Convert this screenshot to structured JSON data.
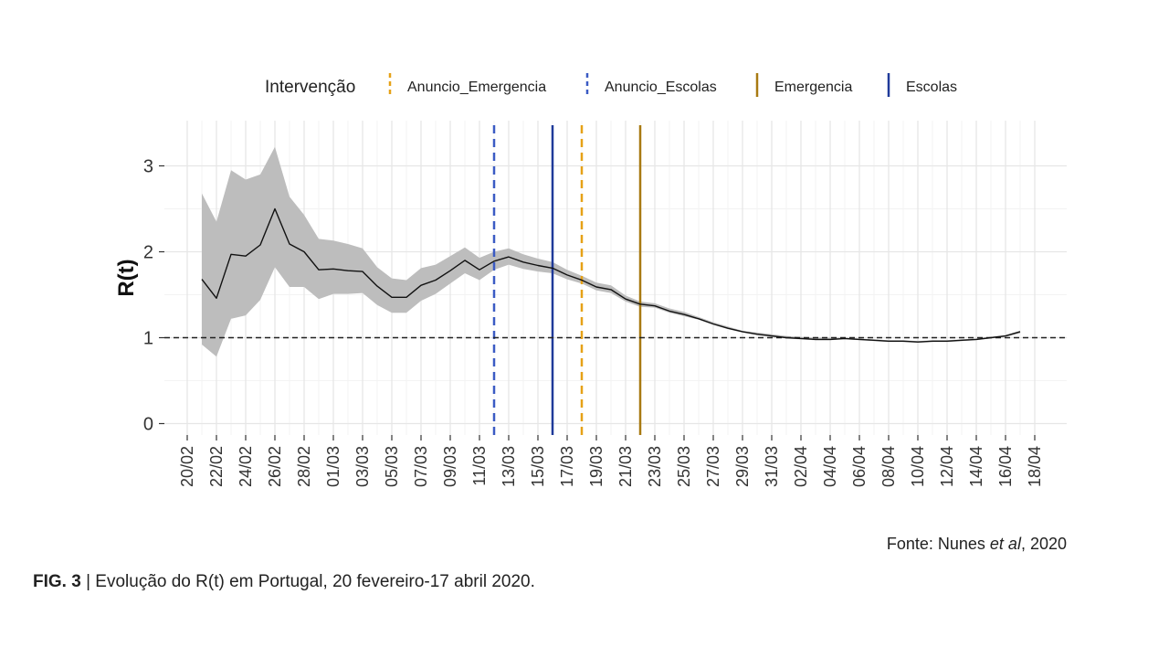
{
  "chart_data": {
    "type": "line",
    "title": "",
    "xlabel": "",
    "ylabel": "R(t)",
    "ylim": [
      0,
      3.4
    ],
    "yticks": [
      "0",
      "1",
      "2",
      "3"
    ],
    "x_tick_labels": [
      "20/02",
      "22/02",
      "24/02",
      "26/02",
      "28/02",
      "01/03",
      "03/03",
      "05/03",
      "07/03",
      "09/03",
      "11/03",
      "13/03",
      "15/03",
      "17/03",
      "19/03",
      "21/03",
      "23/03",
      "25/03",
      "27/03",
      "29/03",
      "31/03",
      "02/04",
      "04/04",
      "06/04",
      "08/04",
      "10/04",
      "12/04",
      "14/04",
      "16/04",
      "18/04"
    ],
    "grid": true,
    "reference_line": {
      "y": 1,
      "style": "dashed",
      "color": "#222222"
    },
    "legend": {
      "title": "Intervenção",
      "placement": "top",
      "items": [
        {
          "label": "Anuncio_Emergencia",
          "color": "#E6A117",
          "style": "dashed",
          "date": "2020-03-18"
        },
        {
          "label": "Anuncio_Escolas",
          "color": "#3B5BC4",
          "style": "dashed",
          "date": "2020-03-12"
        },
        {
          "label": "Emergencia",
          "color": "#A87A12",
          "style": "solid",
          "date": "2020-03-22"
        },
        {
          "label": "Escolas",
          "color": "#1F3A99",
          "style": "solid",
          "date": "2020-03-16"
        }
      ]
    },
    "series": [
      {
        "style": "line_with_ribbon",
        "color": "#111111",
        "band_color": "#BDBDBD",
        "x": [
          "2020-02-21",
          "2020-02-22",
          "2020-02-23",
          "2020-02-24",
          "2020-02-25",
          "2020-02-26",
          "2020-02-27",
          "2020-02-28",
          "2020-02-29",
          "2020-03-01",
          "2020-03-02",
          "2020-03-03",
          "2020-03-04",
          "2020-03-05",
          "2020-03-06",
          "2020-03-07",
          "2020-03-08",
          "2020-03-09",
          "2020-03-10",
          "2020-03-11",
          "2020-03-12",
          "2020-03-13",
          "2020-03-14",
          "2020-03-15",
          "2020-03-16",
          "2020-03-17",
          "2020-03-18",
          "2020-03-19",
          "2020-03-20",
          "2020-03-21",
          "2020-03-22",
          "2020-03-23",
          "2020-03-24",
          "2020-03-25",
          "2020-03-26",
          "2020-03-27",
          "2020-03-28",
          "2020-03-29",
          "2020-03-30",
          "2020-03-31",
          "2020-04-01",
          "2020-04-02",
          "2020-04-03",
          "2020-04-04",
          "2020-04-05",
          "2020-04-06",
          "2020-04-07",
          "2020-04-08",
          "2020-04-09",
          "2020-04-10",
          "2020-04-11",
          "2020-04-12",
          "2020-04-13",
          "2020-04-14",
          "2020-04-15",
          "2020-04-16",
          "2020-04-17"
        ],
        "values": [
          1.68,
          1.46,
          1.97,
          1.95,
          2.08,
          2.5,
          2.09,
          2.0,
          1.79,
          1.8,
          1.78,
          1.77,
          1.6,
          1.47,
          1.47,
          1.61,
          1.67,
          1.78,
          1.9,
          1.79,
          1.89,
          1.94,
          1.88,
          1.84,
          1.81,
          1.73,
          1.67,
          1.59,
          1.56,
          1.45,
          1.39,
          1.37,
          1.31,
          1.27,
          1.22,
          1.16,
          1.11,
          1.07,
          1.04,
          1.02,
          1.0,
          0.99,
          0.98,
          0.98,
          0.99,
          0.98,
          0.97,
          0.96,
          0.96,
          0.95,
          0.96,
          0.96,
          0.97,
          0.98,
          1.0,
          1.02,
          1.07
        ],
        "lower": [
          0.92,
          0.78,
          1.22,
          1.26,
          1.44,
          1.82,
          1.59,
          1.59,
          1.45,
          1.51,
          1.51,
          1.52,
          1.38,
          1.29,
          1.29,
          1.43,
          1.51,
          1.63,
          1.75,
          1.67,
          1.79,
          1.85,
          1.8,
          1.77,
          1.75,
          1.68,
          1.63,
          1.55,
          1.52,
          1.42,
          1.36,
          1.35,
          1.29,
          1.25,
          1.21,
          1.15,
          1.1,
          1.06,
          1.03,
          1.01,
          0.99,
          0.98,
          0.97,
          0.97,
          0.98,
          0.97,
          0.96,
          0.95,
          0.95,
          0.94,
          0.95,
          0.95,
          0.96,
          0.97,
          0.99,
          1.01,
          1.05
        ],
        "upper": [
          2.68,
          2.35,
          2.95,
          2.84,
          2.9,
          3.22,
          2.64,
          2.43,
          2.15,
          2.13,
          2.09,
          2.04,
          1.82,
          1.69,
          1.67,
          1.81,
          1.85,
          1.95,
          2.05,
          1.93,
          2.0,
          2.04,
          1.97,
          1.92,
          1.88,
          1.79,
          1.72,
          1.64,
          1.61,
          1.49,
          1.42,
          1.4,
          1.34,
          1.3,
          1.24,
          1.18,
          1.13,
          1.08,
          1.06,
          1.04,
          1.02,
          1.01,
          1.0,
          1.0,
          1.0,
          0.99,
          0.98,
          0.97,
          0.97,
          0.96,
          0.97,
          0.97,
          0.98,
          0.99,
          1.01,
          1.03,
          1.08
        ]
      }
    ]
  },
  "source": {
    "text_before": "Fonte: Nunes ",
    "text_italic": "et al",
    "text_after": ", 2020"
  },
  "caption": {
    "label": "FIG. 3",
    "separator": " | ",
    "text": "Evolução do R(t) em Portugal, 20 fevereiro-17 abril 2020."
  }
}
